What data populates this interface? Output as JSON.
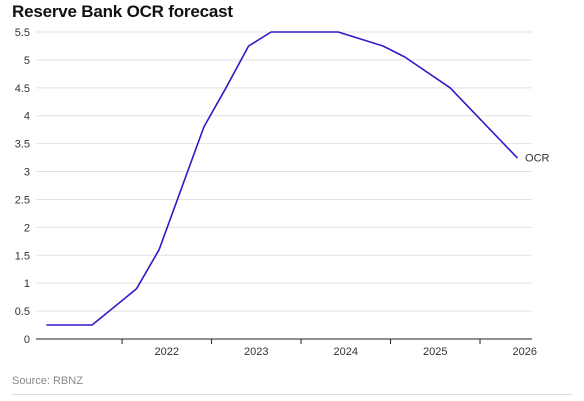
{
  "chart_data": {
    "type": "line",
    "title": "Reserve Bank OCR forecast",
    "xlabel": "",
    "ylabel": "",
    "x_ticks": [
      "2022",
      "2023",
      "2024",
      "2025",
      "2026"
    ],
    "y_ticks": [
      "0",
      "0.5",
      "1",
      "1.5",
      "2",
      "2.5",
      "3",
      "3.5",
      "4",
      "4.5",
      "5",
      "5.5"
    ],
    "xlim": [
      "2021-01-15",
      "2026-08-01"
    ],
    "ylim": [
      0,
      5.5
    ],
    "grid": true,
    "legend": "inline-end-label",
    "series": [
      {
        "name": "OCR",
        "color": "#3b14c8",
        "points": [
          {
            "x": "2021-03-01",
            "y": 0.25
          },
          {
            "x": "2021-09-01",
            "y": 0.25
          },
          {
            "x": "2022-03-01",
            "y": 0.9
          },
          {
            "x": "2022-06-01",
            "y": 1.6
          },
          {
            "x": "2022-12-01",
            "y": 3.8
          },
          {
            "x": "2023-03-01",
            "y": 4.5
          },
          {
            "x": "2023-06-01",
            "y": 5.25
          },
          {
            "x": "2023-09-01",
            "y": 5.5
          },
          {
            "x": "2024-06-01",
            "y": 5.5
          },
          {
            "x": "2024-12-01",
            "y": 5.25
          },
          {
            "x": "2025-03-01",
            "y": 5.05
          },
          {
            "x": "2025-09-01",
            "y": 4.5
          },
          {
            "x": "2026-06-01",
            "y": 3.25
          }
        ]
      }
    ]
  },
  "source": "Source: RBNZ",
  "colors": {
    "line": "#3b14c8",
    "grid": "#e2e2e2",
    "axis": "#222222"
  }
}
